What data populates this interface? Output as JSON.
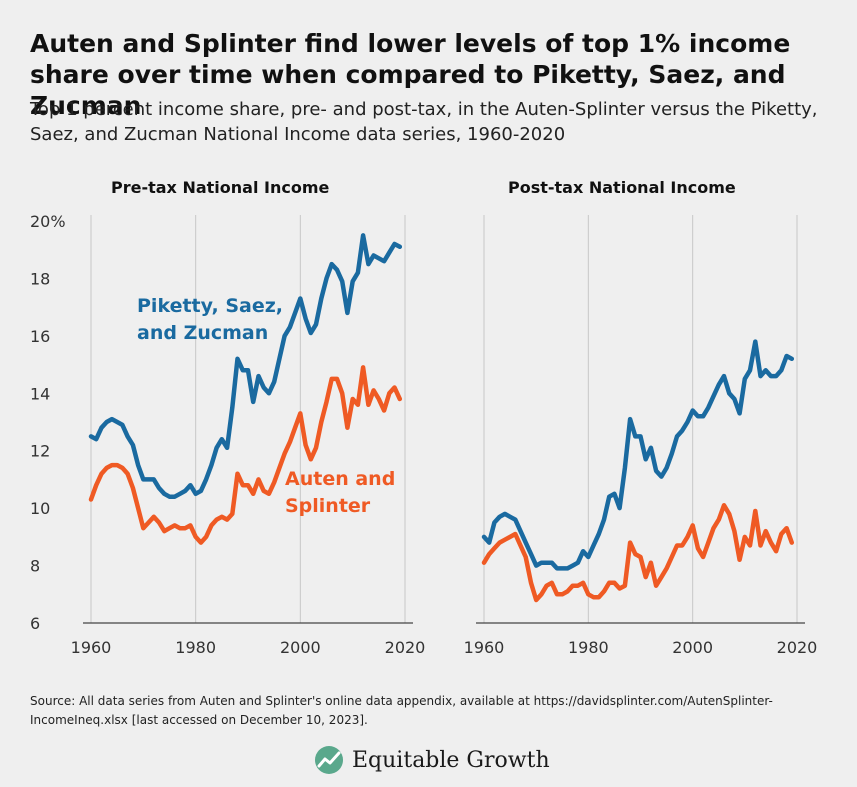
{
  "title": "Auten and Splinter find lower levels of top 1% income share over time when compared to Piketty, Saez, and Zucman",
  "subtitle": "Top 1 percent income share, pre- and post-tax, in the Auten-Splinter versus the Piketty, Saez, and Zucman National Income data series, 1960-2020",
  "source": "Source: All data series from Auten and Splinter's online data appendix, available at https://davidsplinter.com/AutenSplinter-IncomeIneq.xlsx [last accessed on December 10, 2023].",
  "brand": "Equitable Growth",
  "colors": {
    "psz": "#1a6aa0",
    "as": "#ef5a24",
    "grid": "#c7c7c7",
    "axis": "#444444"
  },
  "chart_data": [
    {
      "type": "line",
      "title": "Pre-tax National Income",
      "xlabel": "",
      "ylabel": "",
      "xlim": [
        1960,
        2020
      ],
      "ylim": [
        6,
        20
      ],
      "xticks": [
        "1960",
        "1980",
        "2000",
        "2020"
      ],
      "yticks": [
        "20%",
        "18",
        "16",
        "14",
        "12",
        "10",
        "8",
        "6"
      ],
      "grid": "vertical",
      "x": [
        1960,
        1961,
        1962,
        1963,
        1964,
        1965,
        1966,
        1967,
        1968,
        1969,
        1970,
        1971,
        1972,
        1973,
        1974,
        1975,
        1976,
        1977,
        1978,
        1979,
        1980,
        1981,
        1982,
        1983,
        1984,
        1985,
        1986,
        1987,
        1988,
        1989,
        1990,
        1991,
        1992,
        1993,
        1994,
        1995,
        1996,
        1997,
        1998,
        1999,
        2000,
        2001,
        2002,
        2003,
        2004,
        2005,
        2006,
        2007,
        2008,
        2009,
        2010,
        2011,
        2012,
        2013,
        2014,
        2015,
        2016,
        2017,
        2018,
        2019
      ],
      "series": [
        {
          "name": "Piketty, Saez, and Zucman",
          "label_lines": [
            "Piketty, Saez,",
            "and Zucman"
          ],
          "color_key": "psz",
          "values": [
            12.5,
            12.4,
            12.8,
            13.0,
            13.1,
            13.0,
            12.9,
            12.5,
            12.2,
            11.5,
            11.0,
            11.0,
            11.0,
            10.7,
            10.5,
            10.4,
            10.4,
            10.5,
            10.6,
            10.8,
            10.5,
            10.6,
            11.0,
            11.5,
            12.1,
            12.4,
            12.1,
            13.5,
            15.2,
            14.8,
            14.8,
            13.7,
            14.6,
            14.2,
            14.0,
            14.4,
            15.2,
            16.0,
            16.3,
            16.8,
            17.3,
            16.6,
            16.1,
            16.4,
            17.3,
            18.0,
            18.5,
            18.3,
            17.9,
            16.8,
            17.9,
            18.2,
            19.5,
            18.5,
            18.8,
            18.7,
            18.6,
            18.9,
            19.2,
            19.1
          ]
        },
        {
          "name": "Auten and Splinter",
          "label_lines": [
            "Auten and",
            "Splinter"
          ],
          "color_key": "as",
          "values": [
            10.3,
            10.8,
            11.2,
            11.4,
            11.5,
            11.5,
            11.4,
            11.2,
            10.7,
            10.0,
            9.3,
            9.5,
            9.7,
            9.5,
            9.2,
            9.3,
            9.4,
            9.3,
            9.3,
            9.4,
            9.0,
            8.8,
            9.0,
            9.4,
            9.6,
            9.7,
            9.6,
            9.8,
            11.2,
            10.8,
            10.8,
            10.5,
            11.0,
            10.6,
            10.5,
            10.9,
            11.4,
            11.9,
            12.3,
            12.8,
            13.3,
            12.2,
            11.7,
            12.1,
            13.0,
            13.7,
            14.5,
            14.5,
            14.0,
            12.8,
            13.8,
            13.6,
            14.9,
            13.6,
            14.1,
            13.8,
            13.4,
            14.0,
            14.2,
            13.8
          ]
        }
      ]
    },
    {
      "type": "line",
      "title": "Post-tax National Income",
      "xlabel": "",
      "ylabel": "",
      "xlim": [
        1960,
        2020
      ],
      "ylim": [
        6,
        20
      ],
      "xticks": [
        "1960",
        "1980",
        "2000",
        "2020"
      ],
      "grid": "vertical",
      "x": [
        1960,
        1961,
        1962,
        1963,
        1964,
        1965,
        1966,
        1967,
        1968,
        1969,
        1970,
        1971,
        1972,
        1973,
        1974,
        1975,
        1976,
        1977,
        1978,
        1979,
        1980,
        1981,
        1982,
        1983,
        1984,
        1985,
        1986,
        1987,
        1988,
        1989,
        1990,
        1991,
        1992,
        1993,
        1994,
        1995,
        1996,
        1997,
        1998,
        1999,
        2000,
        2001,
        2002,
        2003,
        2004,
        2005,
        2006,
        2007,
        2008,
        2009,
        2010,
        2011,
        2012,
        2013,
        2014,
        2015,
        2016,
        2017,
        2018,
        2019
      ],
      "series": [
        {
          "name": "Piketty, Saez, and Zucman",
          "color_key": "psz",
          "values": [
            9.0,
            8.8,
            9.5,
            9.7,
            9.8,
            9.7,
            9.6,
            9.2,
            8.8,
            8.4,
            8.0,
            8.1,
            8.1,
            8.1,
            7.9,
            7.9,
            7.9,
            8.0,
            8.1,
            8.5,
            8.3,
            8.7,
            9.1,
            9.6,
            10.4,
            10.5,
            10.0,
            11.4,
            13.1,
            12.5,
            12.5,
            11.7,
            12.1,
            11.3,
            11.1,
            11.4,
            11.9,
            12.5,
            12.7,
            13.0,
            13.4,
            13.2,
            13.2,
            13.5,
            13.9,
            14.3,
            14.6,
            14.0,
            13.8,
            13.3,
            14.5,
            14.8,
            15.8,
            14.6,
            14.8,
            14.6,
            14.6,
            14.8,
            15.3,
            15.2
          ]
        },
        {
          "name": "Auten and Splinter",
          "color_key": "as",
          "values": [
            8.1,
            8.4,
            8.6,
            8.8,
            8.9,
            9.0,
            9.1,
            8.7,
            8.3,
            7.4,
            6.8,
            7.0,
            7.3,
            7.4,
            7.0,
            7.0,
            7.1,
            7.3,
            7.3,
            7.4,
            7.0,
            6.9,
            6.9,
            7.1,
            7.4,
            7.4,
            7.2,
            7.3,
            8.8,
            8.4,
            8.3,
            7.6,
            8.1,
            7.3,
            7.6,
            7.9,
            8.3,
            8.7,
            8.7,
            9.0,
            9.4,
            8.6,
            8.3,
            8.8,
            9.3,
            9.6,
            10.1,
            9.8,
            9.2,
            8.2,
            9.0,
            8.7,
            9.9,
            8.7,
            9.2,
            8.8,
            8.5,
            9.1,
            9.3,
            8.8
          ]
        }
      ]
    }
  ]
}
